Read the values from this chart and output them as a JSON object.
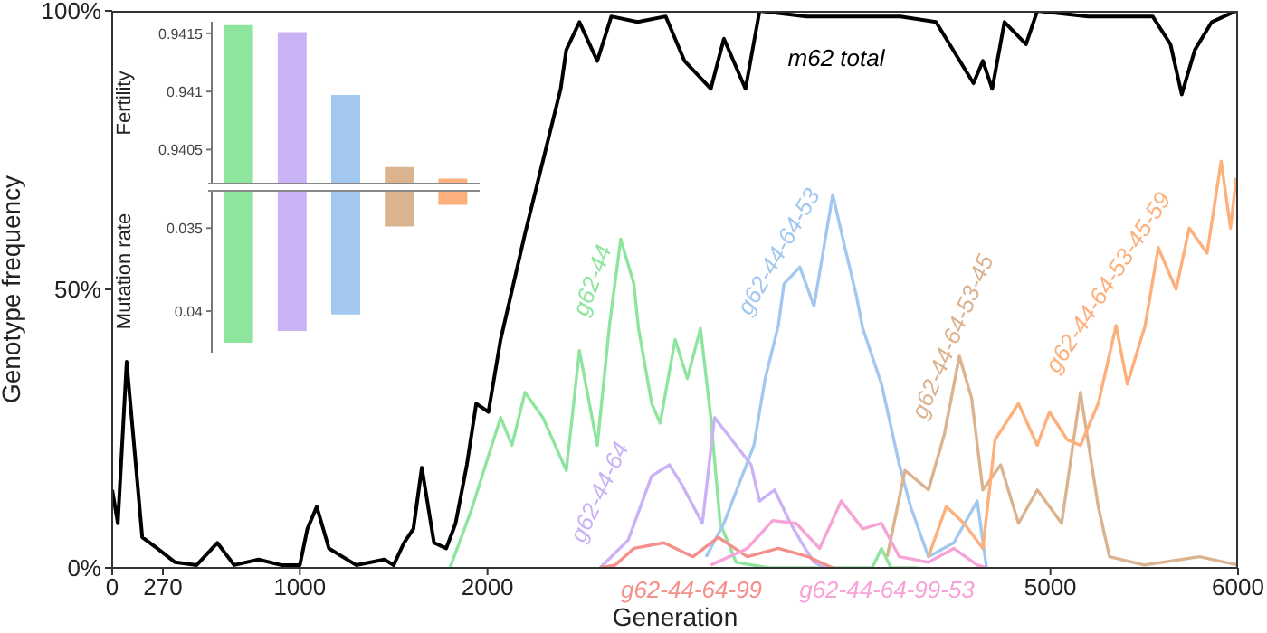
{
  "chart_data": [
    {
      "type": "line",
      "xlabel": "Generation",
      "ylabel": "Genotype frequency",
      "xlim": [
        0,
        6000
      ],
      "xticks": [
        0,
        270,
        1000,
        2000,
        5000,
        6000
      ],
      "ylim": [
        0,
        100
      ],
      "yticks": [
        {
          "value": 0,
          "label": "0%"
        },
        {
          "value": 50,
          "label": "50%"
        },
        {
          "value": 100,
          "label": "100%"
        }
      ],
      "marker": "none",
      "line_style": "solid",
      "series": [
        {
          "name": "m62 total",
          "color": "#000000",
          "x": [
            0,
            30,
            77,
            160,
            240,
            335,
            450,
            560,
            650,
            780,
            900,
            1000,
            1040,
            1090,
            1155,
            1300,
            1450,
            1500,
            1555,
            1605,
            1650,
            1715,
            1780,
            1830,
            1890,
            1940,
            2005,
            2070,
            2200,
            2295,
            2390,
            2420,
            2490,
            2585,
            2660,
            2800,
            2950,
            3050,
            3190,
            3260,
            3375,
            3450,
            3700,
            4000,
            4200,
            4390,
            4590,
            4640,
            4690,
            4755,
            4870,
            4930,
            5200,
            5545,
            5640,
            5700,
            5770,
            5860,
            5990,
            6000
          ],
          "values": [
            14,
            8,
            37,
            5.5,
            3.5,
            1,
            0.5,
            4.5,
            0.5,
            1.5,
            0.5,
            0.5,
            7,
            11,
            3.5,
            0.5,
            1.5,
            0.5,
            4.5,
            7,
            18,
            4.5,
            3.5,
            8,
            18.5,
            29.5,
            28,
            41,
            60,
            73,
            86,
            93,
            98,
            91,
            99,
            98,
            99,
            91,
            86,
            95,
            86,
            100,
            99,
            99,
            99,
            98,
            87,
            91,
            86,
            98,
            94,
            100,
            99,
            99,
            94,
            85,
            93,
            98,
            100,
            100
          ]
        },
        {
          "name": "g62-44",
          "color": "#8ee59e",
          "x": [
            1800,
            1910,
            2070,
            2130,
            2200,
            2295,
            2420,
            2490,
            2585,
            2650,
            2710,
            2780,
            2805,
            2875,
            2920,
            3000,
            3065,
            3135,
            3190,
            3240,
            3325,
            3500,
            3900,
            4050,
            4100,
            4150,
            4300
          ],
          "values": [
            0,
            10,
            27,
            22,
            31.5,
            27,
            17.5,
            39,
            22,
            43.5,
            59,
            51,
            43,
            29.5,
            26,
            41,
            34,
            43,
            27,
            8,
            1,
            0,
            0,
            0,
            3.5,
            0,
            0
          ]
        },
        {
          "name": "g62-44-64",
          "color": "#c9b3f5",
          "x": [
            2600,
            2750,
            2875,
            2970,
            3035,
            3145,
            3210,
            3325,
            3405,
            3450,
            3530,
            3615,
            3675,
            3740,
            3800
          ],
          "values": [
            0,
            5,
            16.5,
            18.5,
            15,
            8,
            27,
            22,
            18.5,
            12,
            14,
            8,
            4.5,
            1,
            0
          ]
        },
        {
          "name": "g62-44-64-53",
          "color": "#a3c8f0",
          "x": [
            3165,
            3260,
            3420,
            3480,
            3550,
            3580,
            3665,
            3740,
            3840,
            3905,
            3965,
            4000,
            4100,
            4195,
            4255,
            4350,
            4485,
            4610,
            4660
          ],
          "values": [
            2,
            8,
            22,
            34,
            43.5,
            51,
            54,
            47,
            67,
            57.5,
            49,
            43,
            33,
            18.5,
            11,
            2,
            4.5,
            12,
            0
          ]
        },
        {
          "name": "g62-44-64-53-45",
          "color": "#dbb38f",
          "x": [
            4130,
            4225,
            4350,
            4435,
            4515,
            4580,
            4640,
            4735,
            4830,
            4930,
            5060,
            5160,
            5255,
            5315,
            5500,
            5795,
            6000
          ],
          "values": [
            2,
            17.5,
            14,
            24,
            38,
            30.5,
            14,
            18.5,
            8,
            14,
            8,
            31.5,
            11,
            2,
            0.5,
            2,
            0.5
          ]
        },
        {
          "name": "g62-44-64-53-45-59",
          "color": "#fdb07c",
          "x": [
            4350,
            4445,
            4540,
            4640,
            4705,
            4830,
            4930,
            4995,
            5090,
            5160,
            5255,
            5350,
            5410,
            5505,
            5575,
            5670,
            5740,
            5835,
            5910,
            5960,
            5990
          ],
          "values": [
            2,
            11,
            8,
            3.5,
            23,
            29.5,
            22,
            28,
            23,
            22,
            29.5,
            43.5,
            33,
            43.5,
            57.5,
            50,
            61,
            56.5,
            73,
            61,
            70
          ]
        },
        {
          "name": "g62-44-64-99",
          "color": "#f58f8a",
          "x": [
            2600,
            2680,
            2780,
            2940,
            3095,
            3230,
            3385,
            3550,
            3710,
            3840
          ],
          "values": [
            0,
            0.5,
            3.5,
            4.5,
            2,
            5.5,
            2,
            3.5,
            2,
            0
          ]
        },
        {
          "name": "g62-44-64-99-53",
          "color": "#f7a3d8",
          "x": [
            3190,
            3385,
            3520,
            3645,
            3770,
            3885,
            4000,
            4100,
            4195,
            4350,
            4485,
            4610,
            4660
          ],
          "values": [
            0.5,
            3.5,
            8.5,
            8,
            3.5,
            12,
            7,
            8,
            2,
            1,
            3.5,
            0.5,
            0
          ]
        }
      ]
    },
    {
      "type": "bar",
      "ylabel": "Fertility",
      "categories": [
        null,
        null,
        null,
        null,
        null
      ],
      "values": [
        0.94157,
        0.94151,
        0.94097,
        0.94035,
        0.94025
      ],
      "colors": [
        "#8ee59e",
        "#c9b3f5",
        "#a3c8f0",
        "#dbb38f",
        "#fdb07c"
      ],
      "ylim": [
        0.9402,
        0.9416
      ],
      "yticks": [
        0.9405,
        0.941,
        0.9415
      ],
      "tick_labels": "y"
    },
    {
      "type": "bar",
      "ylabel": "Mutation rate",
      "categories": [
        null,
        null,
        null,
        null,
        null
      ],
      "values": [
        0.0419,
        0.0412,
        0.0402,
        0.0349,
        0.0336
      ],
      "colors": [
        "#8ee59e",
        "#c9b3f5",
        "#a3c8f0",
        "#dbb38f",
        "#fdb07c"
      ],
      "ylim": [
        0.0425,
        0.0327
      ],
      "yticks": [
        0.035,
        0.04
      ],
      "tick_labels": "y"
    }
  ]
}
